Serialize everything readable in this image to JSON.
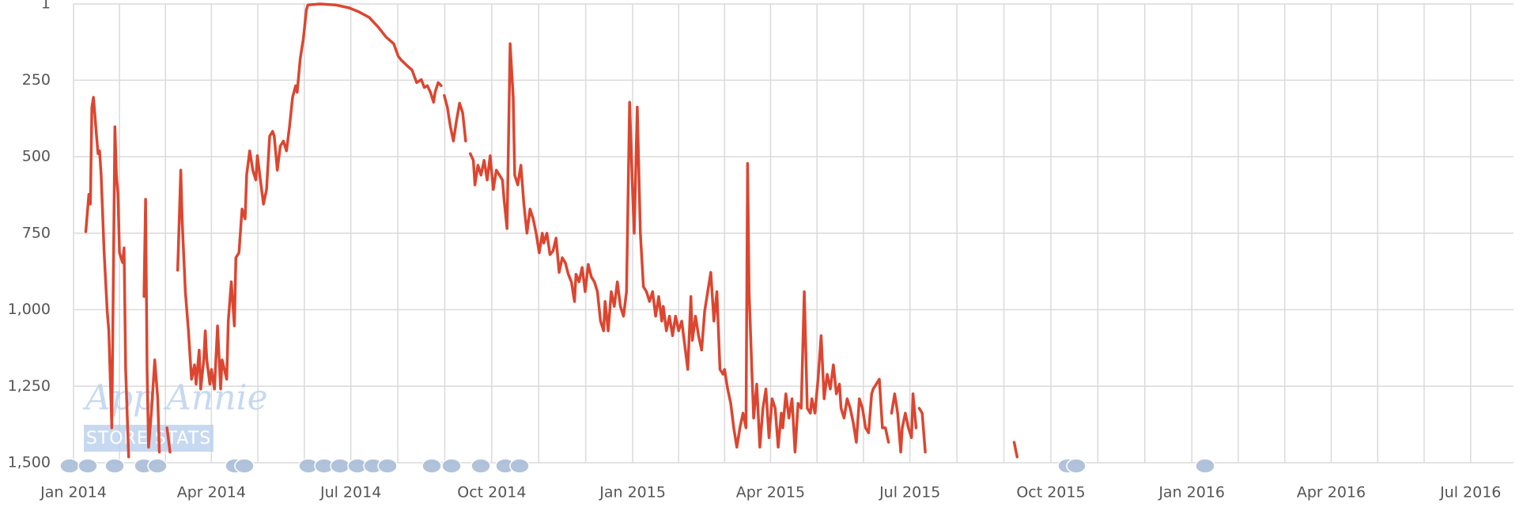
{
  "chart_data": {
    "type": "line",
    "color": "#dc4630",
    "grid": true,
    "y_reversed": true,
    "watermark": {
      "title": "App Annie",
      "subtitle": "STORE STATS"
    },
    "ylim": [
      1,
      1500
    ],
    "yticks": [
      1,
      250,
      500,
      750,
      {
        "value": 1000,
        "label": "1,000"
      },
      {
        "value": 1250,
        "label": "1,250"
      },
      {
        "value": 1500,
        "label": "1,500"
      }
    ],
    "xlim": [
      0,
      940
    ],
    "xticks": [
      {
        "value": 0,
        "label": "Jan 2014"
      },
      {
        "value": 90,
        "label": "Apr 2014"
      },
      {
        "value": 181,
        "label": "Jul 2014"
      },
      {
        "value": 273,
        "label": "Oct 2014"
      },
      {
        "value": 365,
        "label": "Jan 2015"
      },
      {
        "value": 455,
        "label": "Apr 2015"
      },
      {
        "value": 546,
        "label": "Jul 2015"
      },
      {
        "value": 638,
        "label": "Oct 2015"
      },
      {
        "value": 730,
        "label": "Jan 2016"
      },
      {
        "value": 821,
        "label": "Apr 2016"
      },
      {
        "value": 912,
        "label": "Jul 2016"
      }
    ],
    "x": [
      8,
      10,
      11,
      12,
      13,
      15,
      16,
      17,
      18,
      20,
      22,
      23,
      25,
      27,
      28,
      29,
      30,
      32,
      33,
      34,
      36,
      40,
      46,
      47,
      48,
      49,
      51,
      53,
      55,
      56,
      58,
      61,
      63,
      65,
      68,
      70,
      71,
      73,
      75,
      77,
      79,
      80,
      82,
      83,
      85,
      86,
      87,
      89,
      90,
      92,
      94,
      96,
      97,
      100,
      101,
      103,
      105,
      106,
      108,
      110,
      112,
      113,
      115,
      117,
      119,
      120,
      122,
      124,
      126,
      128,
      130,
      131,
      133,
      135,
      137,
      139,
      141,
      143,
      145,
      146,
      148,
      150,
      152,
      153,
      161,
      171,
      180,
      186,
      193,
      199,
      204,
      209,
      212,
      214,
      216,
      218,
      221,
      224,
      227,
      229,
      231,
      233,
      235,
      236,
      238,
      240,
      241,
      242,
      244,
      246,
      248,
      250,
      252,
      254,
      256,
      257,
      259,
      261,
      262,
      264,
      266,
      268,
      270,
      272,
      274,
      276,
      278,
      280,
      281,
      283,
      285,
      287,
      288,
      290,
      292,
      294,
      296,
      298,
      300,
      302,
      304,
      306,
      307,
      309,
      311,
      313,
      315,
      317,
      319,
      321,
      323,
      325,
      327,
      328,
      330,
      332,
      334,
      336,
      338,
      340,
      342,
      344,
      346,
      347,
      349,
      351,
      353,
      355,
      357,
      359,
      361,
      363,
      365,
      366,
      368,
      370,
      372,
      374,
      376,
      378,
      380,
      382,
      384,
      385,
      387,
      389,
      391,
      393,
      395,
      397,
      399,
      401,
      403,
      404,
      406,
      408,
      410,
      412,
      414,
      416,
      418,
      420,
      422,
      424,
      425,
      427,
      429,
      431,
      433,
      435,
      437,
      439,
      440,
      441,
      443,
      444,
      446,
      448,
      450,
      452,
      454,
      456,
      458,
      460,
      462,
      463,
      465,
      467,
      469,
      471,
      473,
      475,
      477,
      479,
      481,
      482,
      484,
      486,
      488,
      490,
      492,
      494,
      496,
      498,
      500,
      501,
      503,
      505,
      507,
      509,
      511,
      513,
      515,
      517,
      519,
      521,
      522,
      524,
      526,
      528,
      530,
      532,
      533,
      534,
      536,
      538,
      540,
      541,
      543,
      545,
      547,
      548,
      550,
      551,
      552,
      554,
      556,
      585,
      614,
      616
    ],
    "values": [
      745,
      623,
      655,
      338,
      306,
      433,
      490,
      481,
      560,
      814,
      1005,
      1069,
      1386,
      402,
      560,
      623,
      814,
      846,
      798,
      1195,
      1481,
      null,
      957,
      639,
      1195,
      1449,
      1322,
      1164,
      1291,
      1465,
      null,
      1386,
      1465,
      null,
      871,
      544,
      718,
      941,
      1069,
      1227,
      1180,
      1243,
      1132,
      1259,
      1164,
      1069,
      1164,
      1243,
      1195,
      1259,
      1053,
      1259,
      1164,
      1227,
      1037,
      909,
      1053,
      830,
      814,
      671,
      703,
      560,
      481,
      544,
      576,
      497,
      576,
      655,
      607,
      433,
      417,
      433,
      544,
      465,
      449,
      481,
      402,
      306,
      268,
      290,
      179,
      115,
      20,
      4,
      1,
      4,
      14,
      26,
      45,
      77,
      109,
      131,
      172,
      185,
      194,
      204,
      217,
      258,
      248,
      274,
      268,
      290,
      322,
      290,
      258,
      268,
      null,
      300,
      338,
      402,
      449,
      382,
      325,
      357,
      449,
      null,
      490,
      512,
      592,
      528,
      560,
      512,
      576,
      497,
      607,
      544,
      560,
      576,
      639,
      735,
      131,
      306,
      560,
      592,
      528,
      655,
      750,
      671,
      703,
      750,
      814,
      750,
      782,
      750,
      820,
      808,
      766,
      878,
      830,
      846,
      884,
      909,
      973,
      884,
      909,
      862,
      941,
      852,
      893,
      909,
      941,
      1037,
      1069,
      973,
      1069,
      941,
      989,
      909,
      989,
      1021,
      941,
      322,
      623,
      750,
      338,
      750,
      925,
      941,
      973,
      941,
      1021,
      957,
      1037,
      989,
      1069,
      1021,
      1085,
      1021,
      1069,
      1037,
      1117,
      1195,
      957,
      1100,
      1021,
      1085,
      1132,
      1005,
      941,
      878,
      1037,
      941,
      1195,
      1211,
      1195,
      1259,
      1306,
      1386,
      1449,
      1386,
      1338,
      1386,
      522,
      941,
      1227,
      1354,
      1243,
      1449,
      1322,
      1259,
      1418,
      1291,
      1322,
      1449,
      1338,
      1386,
      1275,
      1354,
      1291,
      1465,
      1306,
      1322,
      941,
      1322,
      1338,
      1291,
      1338,
      1227,
      1085,
      1291,
      1211,
      1259,
      1180,
      1275,
      1243,
      1322,
      1354,
      1291,
      1322,
      1370,
      1433,
      1291,
      1322,
      1386,
      1402,
      1275,
      1259,
      1243,
      1227,
      1386,
      1386,
      1433,
      null,
      1338,
      1275,
      1338,
      1465,
      1386,
      1338,
      1386,
      1418,
      1275,
      1386,
      null,
      1322,
      1338,
      1465,
      null,
      1433,
      1481
    ]
  }
}
